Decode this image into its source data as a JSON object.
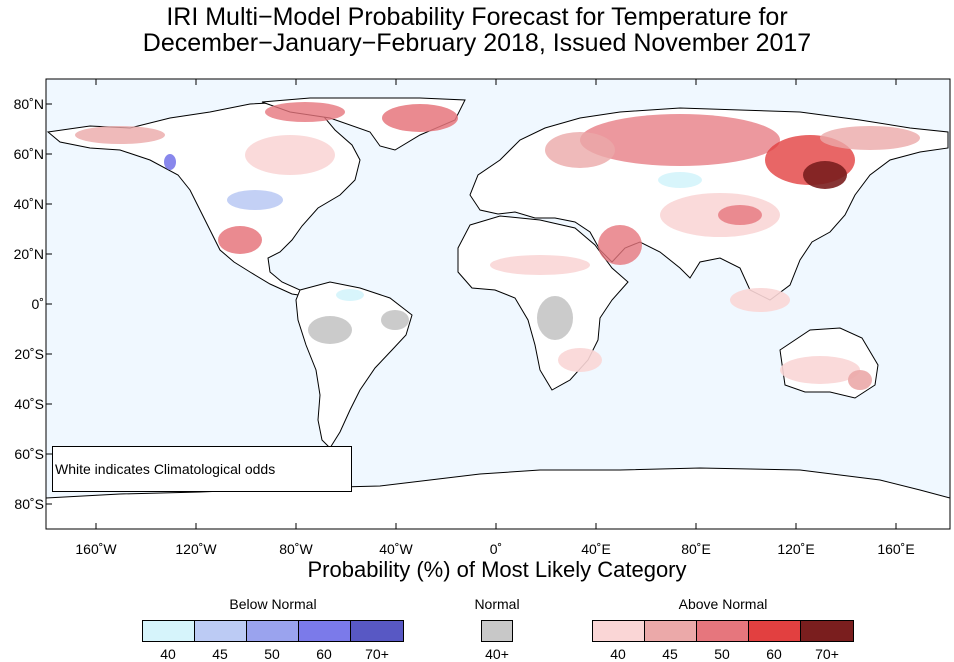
{
  "title_line1": "IRI Multi−Model Probability Forecast for Temperature for",
  "title_line2": "December−January−February 2018, Issued November 2017",
  "lat_labels": [
    "80˚N",
    "60˚N",
    "40˚N",
    "20˚N",
    "0˚",
    "20˚S",
    "40˚S",
    "60˚S",
    "80˚S"
  ],
  "lon_labels": [
    "160˚W",
    "120˚W",
    "80˚W",
    "40˚W",
    "0˚",
    "40˚E",
    "80˚E",
    "120˚E",
    "160˚E"
  ],
  "subtitle": "Probability (%) of Most Likely Category",
  "note": "White indicates Climatological odds",
  "legend": {
    "below": {
      "title": "Below Normal",
      "labels": [
        "40",
        "45",
        "50",
        "60",
        "70+"
      ],
      "colors": [
        "#d6f4fb",
        "#bccbf4",
        "#9aa3ee",
        "#7b7aea",
        "#5858c4"
      ]
    },
    "normal": {
      "title": "Normal",
      "label": "40+",
      "color": "#c8c8c8"
    },
    "above": {
      "title": "Above Normal",
      "labels": [
        "40",
        "45",
        "50",
        "60",
        "70+"
      ],
      "colors": [
        "#fad6d6",
        "#eba9a9",
        "#e6767d",
        "#e24040",
        "#7a1e1e"
      ]
    }
  },
  "colors": {
    "ocean": "#f0f8ff",
    "land": "#ffffff",
    "coast": "#000000"
  }
}
